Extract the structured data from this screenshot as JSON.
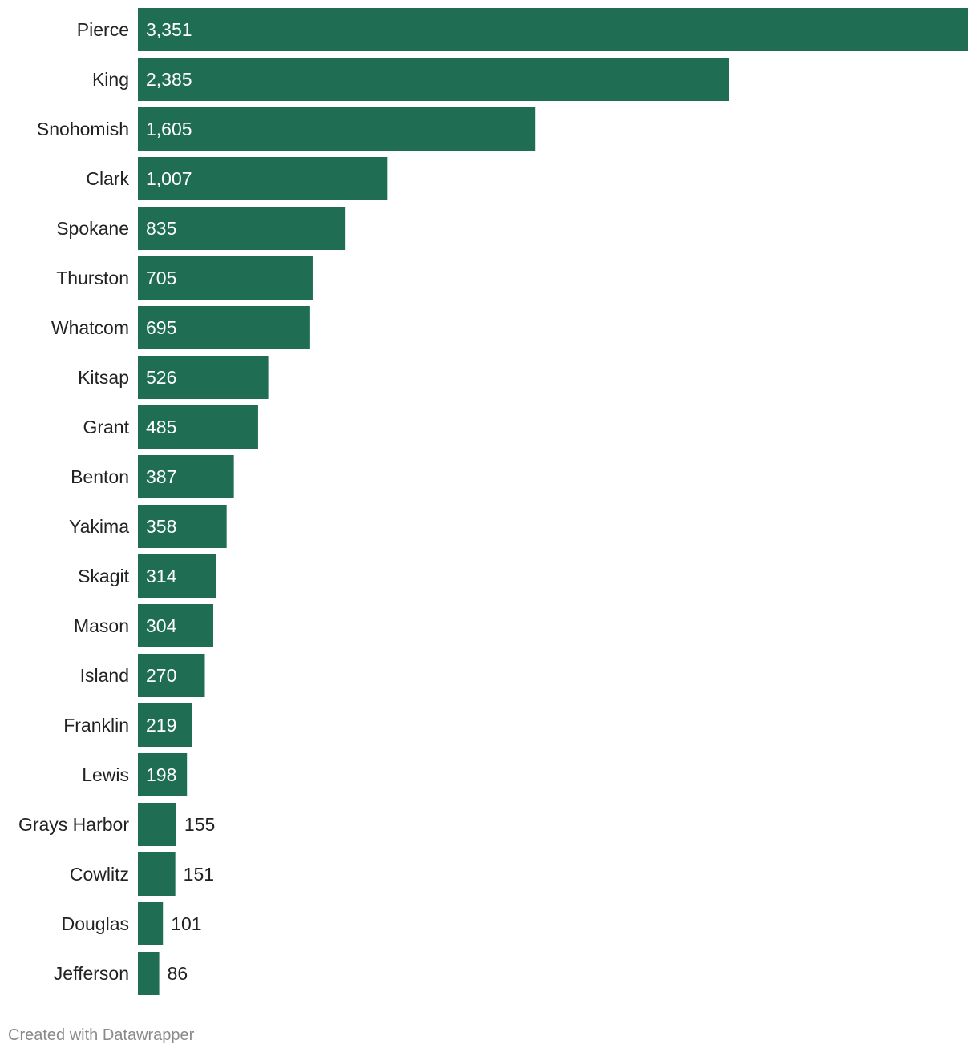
{
  "chart_data": {
    "type": "bar",
    "orientation": "horizontal",
    "categories": [
      "Pierce",
      "King",
      "Snohomish",
      "Clark",
      "Spokane",
      "Thurston",
      "Whatcom",
      "Kitsap",
      "Grant",
      "Benton",
      "Yakima",
      "Skagit",
      "Mason",
      "Island",
      "Franklin",
      "Lewis",
      "Grays Harbor",
      "Cowlitz",
      "Douglas",
      "Jefferson"
    ],
    "values": [
      3351,
      2385,
      1605,
      1007,
      835,
      705,
      695,
      526,
      485,
      387,
      358,
      314,
      304,
      270,
      219,
      198,
      155,
      151,
      101,
      86
    ],
    "value_labels": [
      "3,351",
      "2,385",
      "1,605",
      "1,007",
      "835",
      "705",
      "695",
      "526",
      "485",
      "387",
      "358",
      "314",
      "304",
      "270",
      "219",
      "198",
      "155",
      "151",
      "101",
      "86"
    ],
    "xlim": [
      0,
      3351
    ],
    "bar_color": "#1f6e54",
    "title": "",
    "xlabel": "",
    "ylabel": "",
    "grid": false
  },
  "footer": {
    "credit": "Created with Datawrapper"
  }
}
